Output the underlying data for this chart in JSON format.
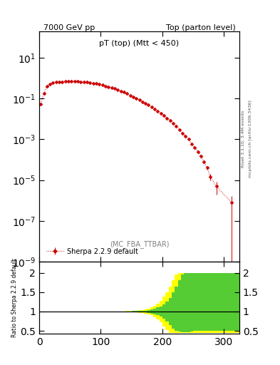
{
  "title_left": "7000 GeV pp",
  "title_right": "Top (parton level)",
  "plot_title": "pT (top) (Mtt < 450)",
  "mc_label": "(MC_FBA_TTBAR)",
  "legend_label": "Sherpa 2.2.9 default",
  "right_label_top": "Rivet 3.1.10, 3.4M events",
  "right_label_bottom": "mcplots.cern.ch [arXiv:1306.3436]",
  "ylabel_ratio": "Ratio to Sherpa 2.2.9 default",
  "xlim": [
    0,
    325
  ],
  "ylim_main": [
    1e-09,
    200
  ],
  "ylim_ratio": [
    0.42,
    2.28
  ],
  "ratio_yticks": [
    0.5,
    1.0,
    1.5,
    2.0
  ],
  "main_color": "#cc0000",
  "xdata": [
    2.5,
    7.5,
    12.5,
    17.5,
    22.5,
    27.5,
    32.5,
    37.5,
    42.5,
    47.5,
    52.5,
    57.5,
    62.5,
    67.5,
    72.5,
    77.5,
    82.5,
    87.5,
    92.5,
    97.5,
    102.5,
    107.5,
    112.5,
    117.5,
    122.5,
    127.5,
    132.5,
    137.5,
    142.5,
    147.5,
    152.5,
    157.5,
    162.5,
    167.5,
    172.5,
    177.5,
    182.5,
    187.5,
    192.5,
    197.5,
    202.5,
    207.5,
    212.5,
    217.5,
    222.5,
    227.5,
    232.5,
    237.5,
    242.5,
    247.5,
    252.5,
    257.5,
    262.5,
    267.5,
    272.5,
    277.5,
    287.5,
    312.5
  ],
  "ydata": [
    0.055,
    0.18,
    0.38,
    0.52,
    0.6,
    0.63,
    0.65,
    0.66,
    0.67,
    0.68,
    0.68,
    0.68,
    0.67,
    0.66,
    0.64,
    0.62,
    0.59,
    0.56,
    0.53,
    0.49,
    0.45,
    0.41,
    0.37,
    0.33,
    0.3,
    0.26,
    0.23,
    0.2,
    0.17,
    0.14,
    0.12,
    0.1,
    0.085,
    0.07,
    0.058,
    0.047,
    0.038,
    0.03,
    0.024,
    0.019,
    0.015,
    0.011,
    0.0085,
    0.006,
    0.0045,
    0.003,
    0.002,
    0.0014,
    0.001,
    0.0006,
    0.0004,
    0.00025,
    0.00015,
    8e-05,
    4e-05,
    1.5e-05,
    5e-06,
    8e-07
  ],
  "yerr": [
    0.003,
    0.006,
    0.008,
    0.01,
    0.01,
    0.01,
    0.01,
    0.01,
    0.01,
    0.01,
    0.01,
    0.01,
    0.01,
    0.01,
    0.01,
    0.009,
    0.009,
    0.008,
    0.008,
    0.007,
    0.007,
    0.006,
    0.006,
    0.005,
    0.005,
    0.004,
    0.004,
    0.003,
    0.003,
    0.003,
    0.002,
    0.002,
    0.002,
    0.001,
    0.001,
    0.001,
    0.0008,
    0.0006,
    0.0005,
    0.0004,
    0.0003,
    0.00025,
    0.0002,
    0.00015,
    0.00012,
    0.0001,
    8e-05,
    6e-05,
    5e-05,
    4e-05,
    3e-05,
    2e-05,
    1.5e-05,
    1e-05,
    7e-06,
    5e-06,
    3e-06,
    8e-07
  ],
  "ratio_xdata": [
    0,
    5,
    10,
    15,
    20,
    25,
    30,
    35,
    40,
    50,
    60,
    70,
    80,
    90,
    100,
    110,
    120,
    130,
    140,
    150,
    160,
    170,
    175,
    180,
    185,
    190,
    195,
    200,
    205,
    210,
    215,
    220,
    225,
    230,
    235,
    240,
    245,
    250,
    255,
    260,
    265,
    270,
    275,
    280,
    285,
    290,
    295,
    300,
    305,
    310,
    315,
    320,
    325
  ],
  "ratio_green_upper": [
    1.0,
    1.0,
    1.0,
    1.0,
    1.0,
    1.0,
    1.0,
    1.0,
    1.0,
    1.0,
    1.0,
    1.0,
    1.0,
    1.0,
    1.0,
    1.0,
    1.0,
    1.002,
    1.005,
    1.01,
    1.015,
    1.02,
    1.03,
    1.05,
    1.07,
    1.1,
    1.13,
    1.18,
    1.25,
    1.35,
    1.5,
    1.65,
    1.8,
    1.95,
    2.0,
    2.0,
    2.0,
    2.0,
    2.0,
    2.0,
    2.0,
    2.0,
    2.0,
    2.0,
    2.0,
    2.0,
    2.0,
    2.0,
    2.0,
    2.0,
    2.0,
    2.0,
    2.0
  ],
  "ratio_green_lower": [
    1.0,
    1.0,
    1.0,
    1.0,
    1.0,
    1.0,
    1.0,
    1.0,
    1.0,
    1.0,
    1.0,
    1.0,
    1.0,
    1.0,
    1.0,
    1.0,
    1.0,
    0.998,
    0.995,
    0.99,
    0.985,
    0.98,
    0.97,
    0.95,
    0.93,
    0.9,
    0.87,
    0.82,
    0.75,
    0.65,
    0.55,
    0.5,
    0.48,
    0.47,
    0.47,
    0.47,
    0.48,
    0.5,
    0.5,
    0.5,
    0.5,
    0.5,
    0.5,
    0.5,
    0.5,
    0.5,
    0.5,
    0.5,
    0.5,
    0.5,
    0.5,
    0.5,
    0.5
  ],
  "ratio_yellow_upper": [
    1.0,
    1.0,
    1.0,
    1.0,
    1.0,
    1.0,
    1.0,
    1.0,
    1.0,
    1.0,
    1.0,
    1.0,
    1.0,
    1.0,
    1.0,
    1.001,
    1.002,
    1.005,
    1.01,
    1.02,
    1.03,
    1.05,
    1.07,
    1.1,
    1.15,
    1.2,
    1.28,
    1.38,
    1.5,
    1.65,
    1.8,
    1.95,
    2.0,
    2.0,
    2.0,
    2.0,
    2.0,
    2.0,
    2.0,
    2.0,
    2.0,
    2.0,
    2.0,
    2.0,
    2.0,
    2.0,
    2.0,
    2.0,
    2.0,
    2.0,
    2.0,
    2.0,
    2.0
  ],
  "ratio_yellow_lower": [
    1.0,
    1.0,
    1.0,
    1.0,
    1.0,
    1.0,
    1.0,
    1.0,
    1.0,
    1.0,
    1.0,
    1.0,
    1.0,
    1.0,
    1.0,
    0.999,
    0.998,
    0.995,
    0.99,
    0.98,
    0.97,
    0.95,
    0.93,
    0.9,
    0.85,
    0.8,
    0.73,
    0.62,
    0.52,
    0.45,
    0.45,
    0.45,
    0.45,
    0.45,
    0.45,
    0.45,
    0.45,
    0.45,
    0.45,
    0.45,
    0.45,
    0.45,
    0.45,
    0.45,
    0.45,
    0.45,
    0.45,
    0.45,
    0.45,
    0.45,
    0.45,
    0.45,
    0.45
  ]
}
